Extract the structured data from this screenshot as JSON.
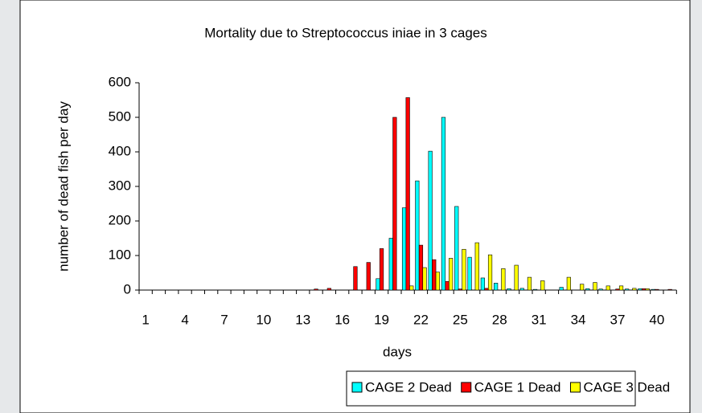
{
  "chart_data": {
    "type": "bar",
    "title": "Mortality due to Streptococcus iniae in 3 cages",
    "x_label": "days",
    "y_label": "number of dead fish per day",
    "categories": [
      1,
      null,
      null,
      4,
      null,
      null,
      7,
      null,
      null,
      10,
      null,
      null,
      13,
      null,
      null,
      16,
      null,
      null,
      19,
      null,
      null,
      22,
      null,
      null,
      25,
      null,
      null,
      28,
      null,
      null,
      31,
      null,
      null,
      34,
      null,
      null,
      37,
      null,
      null,
      40,
      null
    ],
    "series": [
      {
        "name": "CAGE 2 Dead",
        "color": "#00ffff",
        "values": [
          0,
          0,
          0,
          0,
          0,
          0,
          0,
          0,
          0,
          0,
          0,
          0,
          0,
          0,
          0,
          0,
          0,
          0,
          33,
          150,
          238,
          316,
          402,
          500,
          242,
          95,
          35,
          20,
          4,
          5,
          2,
          0,
          8,
          0,
          4,
          3,
          0,
          3,
          4,
          2,
          0
        ]
      },
      {
        "name": "CAGE 1 Dead",
        "color": "#ff0000",
        "values": [
          0,
          0,
          0,
          0,
          0,
          0,
          0,
          0,
          0,
          0,
          0,
          0,
          0,
          3,
          5,
          0,
          68,
          80,
          120,
          500,
          557,
          130,
          88,
          25,
          3,
          0,
          5,
          0,
          0,
          0,
          0,
          0,
          0,
          0,
          0,
          0,
          3,
          0,
          4,
          2,
          2
        ]
      },
      {
        "name": "CAGE 3 Dead",
        "color": "#ffff00",
        "values": [
          0,
          0,
          0,
          0,
          0,
          0,
          0,
          0,
          0,
          0,
          0,
          0,
          0,
          0,
          0,
          0,
          0,
          0,
          0,
          0,
          12,
          65,
          52,
          92,
          118,
          137,
          102,
          62,
          72,
          37,
          27,
          0,
          37,
          17,
          22,
          12,
          12,
          5,
          4,
          0,
          0
        ]
      }
    ],
    "ylim": [
      0,
      600
    ],
    "yticks": [
      0,
      100,
      200,
      300,
      400,
      500,
      600
    ],
    "grid": false,
    "legend": "bottom"
  }
}
